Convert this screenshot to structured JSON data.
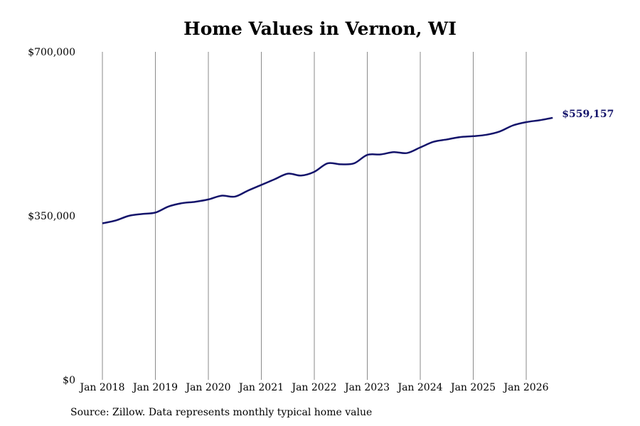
{
  "title": "Home Values in Vernon, WI",
  "source": "Source: Zillow. Data represents monthly typical home value",
  "colors": {
    "line": "#14146b",
    "grid": "#8a8a8a",
    "text": "#000000"
  },
  "chart_data": {
    "type": "line",
    "title": "Home Values in Vernon, WI",
    "ylim": [
      0,
      700000
    ],
    "y_ticks": [
      {
        "value": 0,
        "label": "$0"
      },
      {
        "value": 350000,
        "label": "$350,000"
      },
      {
        "value": 700000,
        "label": "$700,000"
      }
    ],
    "x_ticks": [
      "Jan 2018",
      "Jan 2019",
      "Jan 2020",
      "Jan 2021",
      "Jan 2022",
      "Jan 2023",
      "Jan 2024",
      "Jan 2025",
      "Jan 2026"
    ],
    "grid": "vertical",
    "end_label": "$559,157",
    "series": [
      {
        "x": [
          "2018-01",
          "2018-04",
          "2018-07",
          "2018-10",
          "2019-01",
          "2019-04",
          "2019-07",
          "2019-10",
          "2020-01",
          "2020-04",
          "2020-07",
          "2020-10",
          "2021-01",
          "2021-04",
          "2021-07",
          "2021-10",
          "2022-01",
          "2022-04",
          "2022-07",
          "2022-10",
          "2023-01",
          "2023-04",
          "2023-07",
          "2023-10",
          "2024-01",
          "2024-04",
          "2024-07",
          "2024-10",
          "2025-01",
          "2025-04",
          "2025-07",
          "2025-10",
          "2026-01",
          "2026-04",
          "2026-07"
        ],
        "values": [
          334000,
          340000,
          350000,
          354000,
          357000,
          370000,
          377000,
          380000,
          385000,
          393000,
          391000,
          404000,
          416000,
          428000,
          440000,
          436000,
          444000,
          462000,
          460000,
          462000,
          480000,
          481000,
          486000,
          484000,
          496000,
          508000,
          513000,
          518000,
          520000,
          523000,
          530000,
          543000,
          550000,
          554000,
          559157
        ]
      }
    ]
  }
}
